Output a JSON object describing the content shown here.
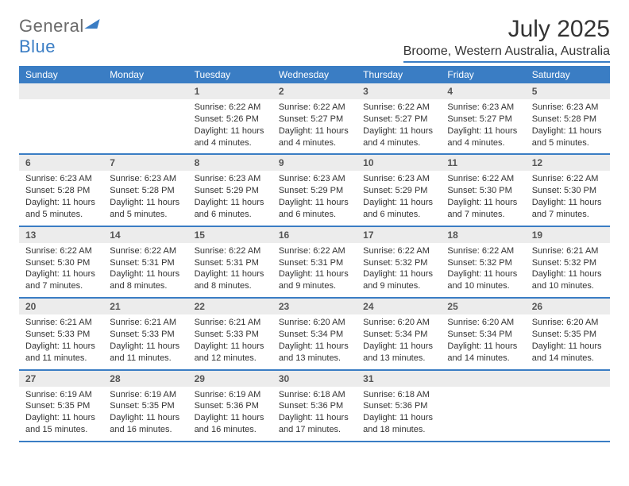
{
  "brand": {
    "word1": "General",
    "word2": "Blue"
  },
  "title": "July 2025",
  "location": "Broome, Western Australia, Australia",
  "weekday_labels": [
    "Sunday",
    "Monday",
    "Tuesday",
    "Wednesday",
    "Thursday",
    "Friday",
    "Saturday"
  ],
  "colors": {
    "primary": "#3a7dc4",
    "header_bg": "#ececec",
    "text": "#333333",
    "muted_text": "#6b6b6b",
    "background": "#ffffff"
  },
  "typography": {
    "title_fontsize": 30,
    "location_fontsize": 16,
    "weekday_fontsize": 12,
    "date_fontsize": 12,
    "info_fontsize": 11
  },
  "layout": {
    "cols": 7,
    "rows": 5,
    "cell_min_height": 84
  },
  "weeks": [
    [
      {
        "date": null,
        "sunrise": null,
        "sunset": null,
        "daylight": null
      },
      {
        "date": null,
        "sunrise": null,
        "sunset": null,
        "daylight": null
      },
      {
        "date": "1",
        "sunrise": "Sunrise: 6:22 AM",
        "sunset": "Sunset: 5:26 PM",
        "daylight": "Daylight: 11 hours and 4 minutes."
      },
      {
        "date": "2",
        "sunrise": "Sunrise: 6:22 AM",
        "sunset": "Sunset: 5:27 PM",
        "daylight": "Daylight: 11 hours and 4 minutes."
      },
      {
        "date": "3",
        "sunrise": "Sunrise: 6:22 AM",
        "sunset": "Sunset: 5:27 PM",
        "daylight": "Daylight: 11 hours and 4 minutes."
      },
      {
        "date": "4",
        "sunrise": "Sunrise: 6:23 AM",
        "sunset": "Sunset: 5:27 PM",
        "daylight": "Daylight: 11 hours and 4 minutes."
      },
      {
        "date": "5",
        "sunrise": "Sunrise: 6:23 AM",
        "sunset": "Sunset: 5:28 PM",
        "daylight": "Daylight: 11 hours and 5 minutes."
      }
    ],
    [
      {
        "date": "6",
        "sunrise": "Sunrise: 6:23 AM",
        "sunset": "Sunset: 5:28 PM",
        "daylight": "Daylight: 11 hours and 5 minutes."
      },
      {
        "date": "7",
        "sunrise": "Sunrise: 6:23 AM",
        "sunset": "Sunset: 5:28 PM",
        "daylight": "Daylight: 11 hours and 5 minutes."
      },
      {
        "date": "8",
        "sunrise": "Sunrise: 6:23 AM",
        "sunset": "Sunset: 5:29 PM",
        "daylight": "Daylight: 11 hours and 6 minutes."
      },
      {
        "date": "9",
        "sunrise": "Sunrise: 6:23 AM",
        "sunset": "Sunset: 5:29 PM",
        "daylight": "Daylight: 11 hours and 6 minutes."
      },
      {
        "date": "10",
        "sunrise": "Sunrise: 6:23 AM",
        "sunset": "Sunset: 5:29 PM",
        "daylight": "Daylight: 11 hours and 6 minutes."
      },
      {
        "date": "11",
        "sunrise": "Sunrise: 6:22 AM",
        "sunset": "Sunset: 5:30 PM",
        "daylight": "Daylight: 11 hours and 7 minutes."
      },
      {
        "date": "12",
        "sunrise": "Sunrise: 6:22 AM",
        "sunset": "Sunset: 5:30 PM",
        "daylight": "Daylight: 11 hours and 7 minutes."
      }
    ],
    [
      {
        "date": "13",
        "sunrise": "Sunrise: 6:22 AM",
        "sunset": "Sunset: 5:30 PM",
        "daylight": "Daylight: 11 hours and 7 minutes."
      },
      {
        "date": "14",
        "sunrise": "Sunrise: 6:22 AM",
        "sunset": "Sunset: 5:31 PM",
        "daylight": "Daylight: 11 hours and 8 minutes."
      },
      {
        "date": "15",
        "sunrise": "Sunrise: 6:22 AM",
        "sunset": "Sunset: 5:31 PM",
        "daylight": "Daylight: 11 hours and 8 minutes."
      },
      {
        "date": "16",
        "sunrise": "Sunrise: 6:22 AM",
        "sunset": "Sunset: 5:31 PM",
        "daylight": "Daylight: 11 hours and 9 minutes."
      },
      {
        "date": "17",
        "sunrise": "Sunrise: 6:22 AM",
        "sunset": "Sunset: 5:32 PM",
        "daylight": "Daylight: 11 hours and 9 minutes."
      },
      {
        "date": "18",
        "sunrise": "Sunrise: 6:22 AM",
        "sunset": "Sunset: 5:32 PM",
        "daylight": "Daylight: 11 hours and 10 minutes."
      },
      {
        "date": "19",
        "sunrise": "Sunrise: 6:21 AM",
        "sunset": "Sunset: 5:32 PM",
        "daylight": "Daylight: 11 hours and 10 minutes."
      }
    ],
    [
      {
        "date": "20",
        "sunrise": "Sunrise: 6:21 AM",
        "sunset": "Sunset: 5:33 PM",
        "daylight": "Daylight: 11 hours and 11 minutes."
      },
      {
        "date": "21",
        "sunrise": "Sunrise: 6:21 AM",
        "sunset": "Sunset: 5:33 PM",
        "daylight": "Daylight: 11 hours and 11 minutes."
      },
      {
        "date": "22",
        "sunrise": "Sunrise: 6:21 AM",
        "sunset": "Sunset: 5:33 PM",
        "daylight": "Daylight: 11 hours and 12 minutes."
      },
      {
        "date": "23",
        "sunrise": "Sunrise: 6:20 AM",
        "sunset": "Sunset: 5:34 PM",
        "daylight": "Daylight: 11 hours and 13 minutes."
      },
      {
        "date": "24",
        "sunrise": "Sunrise: 6:20 AM",
        "sunset": "Sunset: 5:34 PM",
        "daylight": "Daylight: 11 hours and 13 minutes."
      },
      {
        "date": "25",
        "sunrise": "Sunrise: 6:20 AM",
        "sunset": "Sunset: 5:34 PM",
        "daylight": "Daylight: 11 hours and 14 minutes."
      },
      {
        "date": "26",
        "sunrise": "Sunrise: 6:20 AM",
        "sunset": "Sunset: 5:35 PM",
        "daylight": "Daylight: 11 hours and 14 minutes."
      }
    ],
    [
      {
        "date": "27",
        "sunrise": "Sunrise: 6:19 AM",
        "sunset": "Sunset: 5:35 PM",
        "daylight": "Daylight: 11 hours and 15 minutes."
      },
      {
        "date": "28",
        "sunrise": "Sunrise: 6:19 AM",
        "sunset": "Sunset: 5:35 PM",
        "daylight": "Daylight: 11 hours and 16 minutes."
      },
      {
        "date": "29",
        "sunrise": "Sunrise: 6:19 AM",
        "sunset": "Sunset: 5:36 PM",
        "daylight": "Daylight: 11 hours and 16 minutes."
      },
      {
        "date": "30",
        "sunrise": "Sunrise: 6:18 AM",
        "sunset": "Sunset: 5:36 PM",
        "daylight": "Daylight: 11 hours and 17 minutes."
      },
      {
        "date": "31",
        "sunrise": "Sunrise: 6:18 AM",
        "sunset": "Sunset: 5:36 PM",
        "daylight": "Daylight: 11 hours and 18 minutes."
      },
      {
        "date": null,
        "sunrise": null,
        "sunset": null,
        "daylight": null
      },
      {
        "date": null,
        "sunrise": null,
        "sunset": null,
        "daylight": null
      }
    ]
  ]
}
